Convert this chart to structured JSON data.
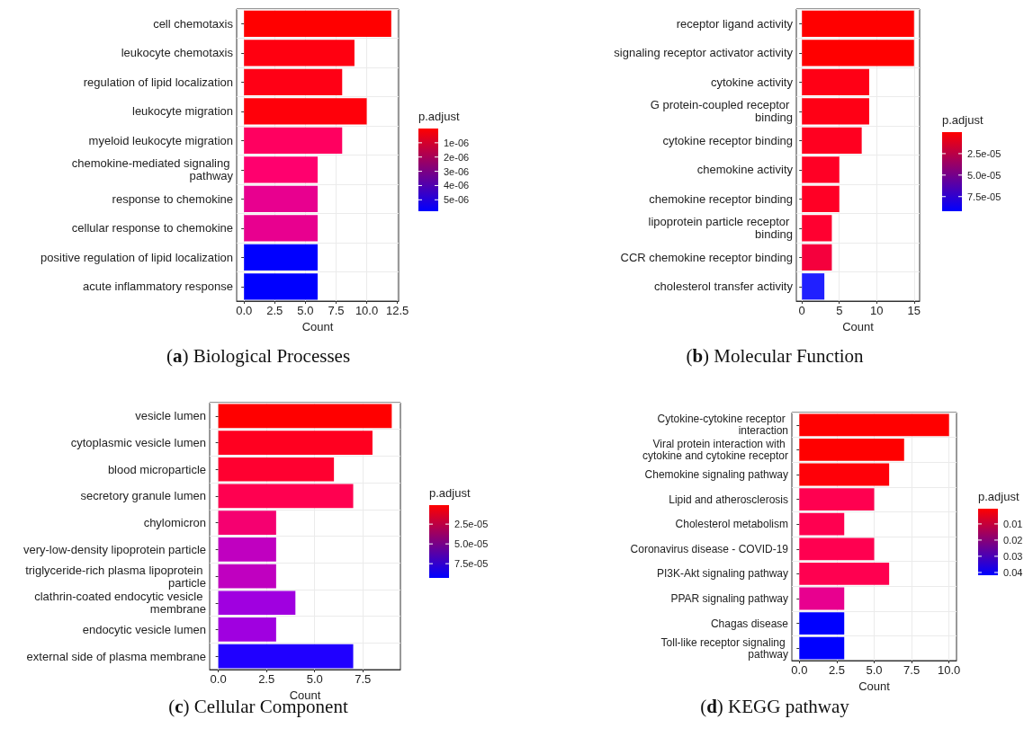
{
  "chart_data": [
    {
      "type": "bar",
      "orientation": "horizontal",
      "title": "(a) Biological Processes",
      "xlabel": "Count",
      "clabel": "p.adjust",
      "grid": true,
      "categories": [
        "cell chemotaxis",
        "leukocyte chemotaxis",
        "regulation of lipid localization",
        "leukocyte migration",
        "myeloid leukocyte migration",
        "chemokine-mediated signaling pathway",
        "response to chemokine",
        "cellular response to chemokine",
        "positive regulation of lipid localization",
        "acute inflammatory response"
      ],
      "values": [
        12,
        9,
        8,
        10,
        8,
        6,
        6,
        6,
        6,
        6
      ],
      "colors": [
        "#ff0000",
        "#ff0010",
        "#ff0015",
        "#ff000a",
        "#ff0060",
        "#ff006e",
        "#e8008f",
        "#e8008f",
        "#0000ff",
        "#0000ff"
      ],
      "xlim": [
        -0.6,
        12.6
      ],
      "xticks": [
        {
          "value": 0,
          "label": "0.0"
        },
        {
          "value": 2.5,
          "label": "2.5"
        },
        {
          "value": 5,
          "label": "5.0"
        },
        {
          "value": 7.5,
          "label": "7.5"
        },
        {
          "value": 10,
          "label": "10.0"
        },
        {
          "value": 12.5,
          "label": "12.5"
        }
      ],
      "clim": [
        0,
        5.8e-06
      ],
      "cticks": [
        {
          "value": 1e-06,
          "label": "1e-06"
        },
        {
          "value": 2e-06,
          "label": "2e-06"
        },
        {
          "value": 3e-06,
          "label": "3e-06"
        },
        {
          "value": 4e-06,
          "label": "4e-06"
        },
        {
          "value": 5e-06,
          "label": "5e-06"
        }
      ]
    },
    {
      "type": "bar",
      "orientation": "horizontal",
      "title": "(b) Molecular Function",
      "xlabel": "Count",
      "clabel": "p.adjust",
      "grid": true,
      "categories": [
        "receptor ligand activity",
        "signaling receptor activator activity",
        "cytokine activity",
        "G protein-coupled receptor binding",
        "cytokine receptor binding",
        "chemokine activity",
        "chemokine receptor binding",
        "lipoprotein particle receptor binding",
        "CCR chemokine receptor binding",
        "cholesterol transfer activity"
      ],
      "values": [
        15,
        15,
        9,
        9,
        8,
        5,
        5,
        4,
        4,
        3
      ],
      "colors": [
        "#ff0000",
        "#ff0000",
        "#ff0015",
        "#ff0015",
        "#ff0020",
        "#ff0025",
        "#ff0025",
        "#ff0030",
        "#f5003d",
        "#2020ff"
      ],
      "xlim": [
        -0.75,
        15.75
      ],
      "xticks": [
        0,
        5,
        10,
        15
      ],
      "clim": [
        0,
        9.2e-05
      ],
      "cticks": [
        {
          "value": 2.5e-05,
          "label": "2.5e-05"
        },
        {
          "value": 5e-05,
          "label": "5.0e-05"
        },
        {
          "value": 7.5e-05,
          "label": "7.5e-05"
        }
      ]
    },
    {
      "type": "bar",
      "orientation": "horizontal",
      "title": "(c) Cellular Component",
      "xlabel": "Count",
      "clabel": "p.adjust",
      "grid": true,
      "categories": [
        "vesicle lumen",
        "cytoplasmic vesicle lumen",
        "blood microparticle",
        "secretory granule lumen",
        "chylomicron",
        "very-low-density lipoprotein particle",
        "triglyceride-rich plasma lipoprotein particle",
        "clathrin-coated endocytic vesicle membrane",
        "endocytic vesicle lumen",
        "external side of plasma membrane"
      ],
      "values": [
        9,
        8,
        6,
        7,
        3,
        3,
        3,
        4,
        3,
        7
      ],
      "colors": [
        "#ff0000",
        "#ff0020",
        "#ff0030",
        "#ff0050",
        "#f50070",
        "#c000c0",
        "#c000c0",
        "#a000e0",
        "#a000e0",
        "#2000ff"
      ],
      "xlim": [
        -0.45,
        9.45
      ],
      "xticks": [
        {
          "value": 0,
          "label": "0.0"
        },
        {
          "value": 2.5,
          "label": "2.5"
        },
        {
          "value": 5,
          "label": "5.0"
        },
        {
          "value": 7.5,
          "label": "7.5"
        }
      ],
      "clim": [
        1e-06,
        9.3e-05
      ],
      "cticks": [
        {
          "value": 2.5e-05,
          "label": "2.5e-05"
        },
        {
          "value": 5e-05,
          "label": "5.0e-05"
        },
        {
          "value": 7.5e-05,
          "label": "7.5e-05"
        }
      ]
    },
    {
      "type": "bar",
      "orientation": "horizontal",
      "title": "(d) KEGG pathway",
      "xlabel": "Count",
      "clabel": "p.adjust",
      "grid": true,
      "categories": [
        "Cytokine-cytokine receptor interaction",
        "Viral protein interaction with cytokine and cytokine receptor",
        "Chemokine signaling pathway",
        "Lipid and atherosclerosis",
        "Cholesterol metabolism",
        "Coronavirus disease - COVID-19",
        "PI3K-Akt signaling pathway",
        "PPAR signaling pathway",
        "Chagas disease",
        "Toll-like receptor signaling pathway"
      ],
      "values": [
        10,
        7,
        6,
        5,
        3,
        5,
        6,
        3,
        3,
        3
      ],
      "colors": [
        "#ff0000",
        "#ff0000",
        "#ff0008",
        "#ff0050",
        "#ff0050",
        "#ff0050",
        "#ff0050",
        "#e8008f",
        "#0000ff",
        "#0000ff"
      ],
      "xlim": [
        -0.5,
        10.5
      ],
      "xticks": [
        {
          "value": 0,
          "label": "0.0"
        },
        {
          "value": 2.5,
          "label": "2.5"
        },
        {
          "value": 5,
          "label": "5.0"
        },
        {
          "value": 7.5,
          "label": "7.5"
        },
        {
          "value": 10,
          "label": "10.0"
        }
      ],
      "clim": [
        0.0006,
        0.0417
      ],
      "cticks": [
        0.01,
        0.02,
        0.03,
        0.04
      ]
    }
  ]
}
